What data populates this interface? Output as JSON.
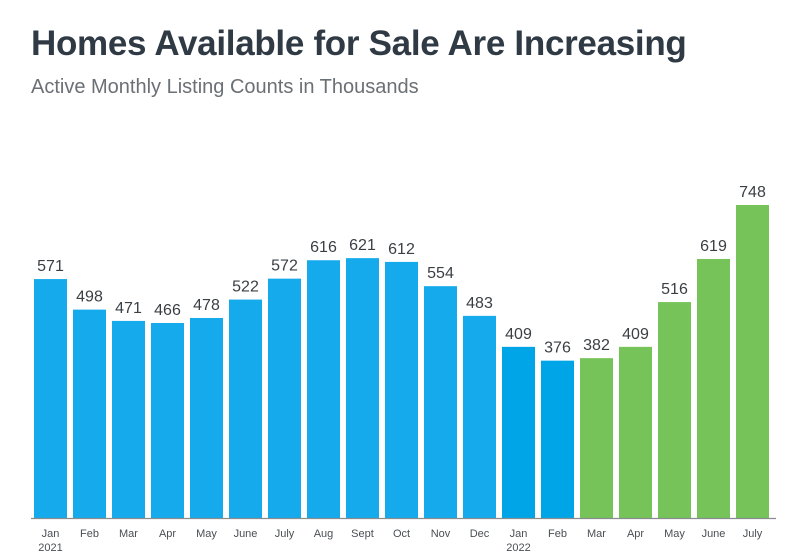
{
  "header": {
    "title": "Homes Available for Sale Are Increasing",
    "subtitle": "Active Monthly Listing Counts in Thousands"
  },
  "colors": {
    "blue": "#14aaec",
    "blue_dark": "#00a5e8",
    "green": "#76c35a",
    "axis": "#8a8d90"
  },
  "chart_data": {
    "type": "bar",
    "title": "Homes Available for Sale Are Increasing",
    "subtitle": "Active Monthly Listing Counts in Thousands",
    "xlabel": "",
    "ylabel": "",
    "ylim": [
      0,
      800
    ],
    "grid": false,
    "categories": [
      "Jan",
      "Feb",
      "Mar",
      "Apr",
      "May",
      "June",
      "July",
      "Aug",
      "Sept",
      "Oct",
      "Nov",
      "Dec",
      "Jan",
      "Feb",
      "Mar",
      "Apr",
      "May",
      "June",
      "July"
    ],
    "category_sublabels": [
      "2021",
      "",
      "",
      "",
      "",
      "",
      "",
      "",
      "",
      "",
      "",
      "",
      "2022",
      "",
      "",
      "",
      "",
      "",
      ""
    ],
    "values": [
      571,
      498,
      471,
      466,
      478,
      522,
      572,
      616,
      621,
      612,
      554,
      483,
      409,
      376,
      382,
      409,
      516,
      619,
      748
    ],
    "bar_colors": [
      "blue",
      "blue",
      "blue",
      "blue",
      "blue",
      "blue",
      "blue",
      "blue",
      "blue",
      "blue",
      "blue",
      "blue",
      "blue_dark",
      "blue_dark",
      "green",
      "green",
      "green",
      "green",
      "green"
    ]
  }
}
